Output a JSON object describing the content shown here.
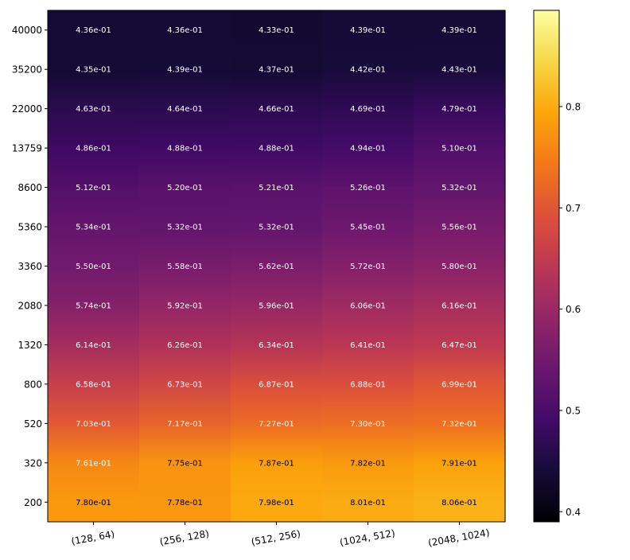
{
  "chart_data": {
    "type": "heatmap",
    "title": "",
    "xlabel": "",
    "ylabel": "",
    "x_categories": [
      "(128, 64)",
      "(256, 128)",
      "(512, 256)",
      "(1024, 512)",
      "(2048, 1024)"
    ],
    "y_categories": [
      "40000",
      "35200",
      "22000",
      "13759",
      "8600",
      "5360",
      "3360",
      "2080",
      "1320",
      "800",
      "520",
      "320",
      "200"
    ],
    "labels": [
      [
        "4.36e-01",
        "4.36e-01",
        "4.33e-01",
        "4.39e-01",
        "4.39e-01"
      ],
      [
        "4.35e-01",
        "4.39e-01",
        "4.37e-01",
        "4.42e-01",
        "4.43e-01"
      ],
      [
        "4.63e-01",
        "4.64e-01",
        "4.66e-01",
        "4.69e-01",
        "4.79e-01"
      ],
      [
        "4.86e-01",
        "4.88e-01",
        "4.88e-01",
        "4.94e-01",
        "5.10e-01"
      ],
      [
        "5.12e-01",
        "5.20e-01",
        "5.21e-01",
        "5.26e-01",
        "5.32e-01"
      ],
      [
        "5.34e-01",
        "5.32e-01",
        "5.32e-01",
        "5.45e-01",
        "5.56e-01"
      ],
      [
        "5.50e-01",
        "5.58e-01",
        "5.62e-01",
        "5.72e-01",
        "5.80e-01"
      ],
      [
        "5.74e-01",
        "5.92e-01",
        "5.96e-01",
        "6.06e-01",
        "6.16e-01"
      ],
      [
        "6.14e-01",
        "6.26e-01",
        "6.34e-01",
        "6.41e-01",
        "6.47e-01"
      ],
      [
        "6.58e-01",
        "6.73e-01",
        "6.87e-01",
        "6.88e-01",
        "6.99e-01"
      ],
      [
        "7.03e-01",
        "7.17e-01",
        "7.27e-01",
        "7.30e-01",
        "7.32e-01"
      ],
      [
        "7.61e-01",
        "7.75e-01",
        "7.87e-01",
        "7.82e-01",
        "7.91e-01"
      ],
      [
        "7.80e-01",
        "7.78e-01",
        "7.98e-01",
        "8.01e-01",
        "8.06e-01"
      ]
    ],
    "colormap": "inferno",
    "colorbar": {
      "range": [
        0.39,
        0.895
      ],
      "ticks": [
        0.4,
        0.5,
        0.6,
        0.7,
        0.8
      ],
      "tick_labels": [
        "0.4",
        "0.5",
        "0.6",
        "0.7",
        "0.8"
      ]
    },
    "text_color_threshold": 0.77,
    "text_colors": {
      "light": "#ffffff",
      "dark": "#000000"
    },
    "grid": false,
    "legend": "colorbar-right"
  }
}
